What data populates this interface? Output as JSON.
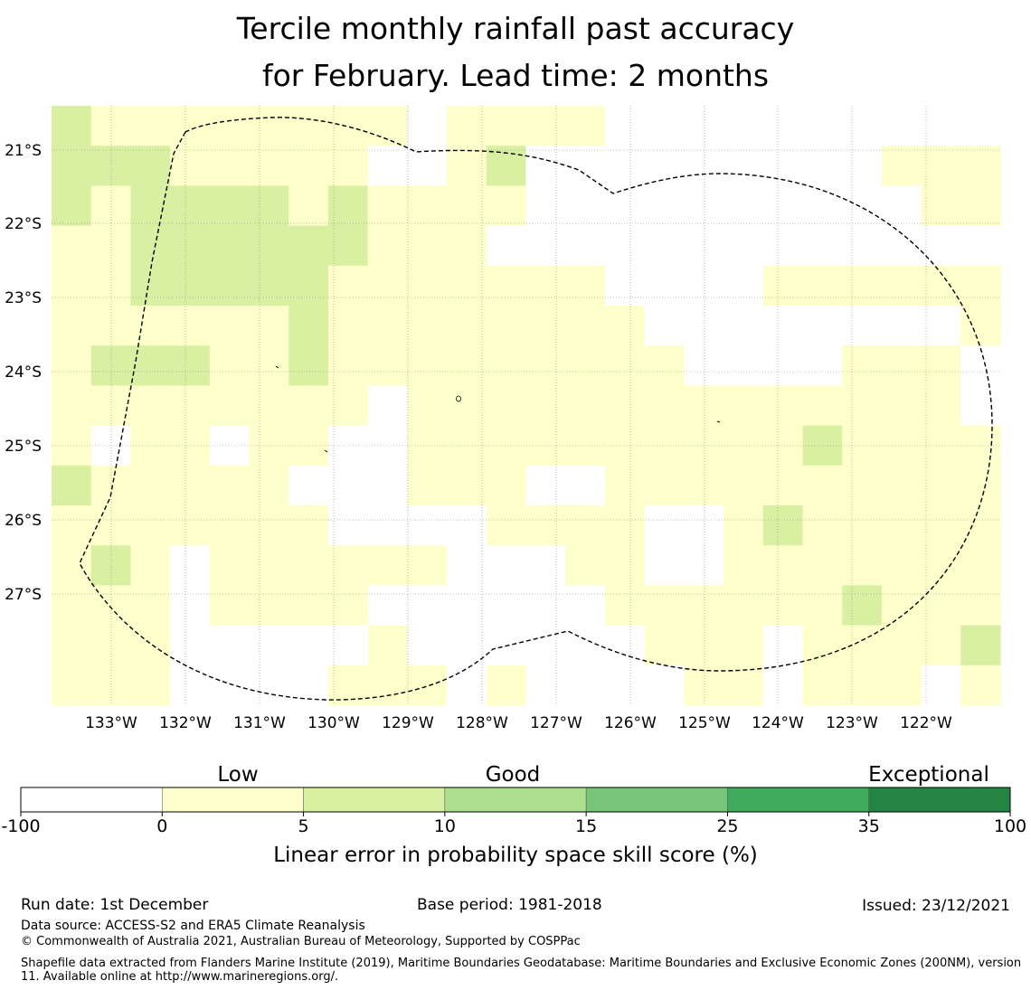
{
  "title": {
    "line1": "Tercile monthly rainfall past accuracy",
    "line2": "for February. Lead time: 2 months"
  },
  "map": {
    "lon_labels": [
      "133°W",
      "132°W",
      "131°W",
      "130°W",
      "129°W",
      "128°W",
      "127°W",
      "126°W",
      "125°W",
      "124°W",
      "123°W",
      "122°W"
    ],
    "lat_labels": [
      "21°S",
      "22°S",
      "23°S",
      "24°S",
      "25°S",
      "26°S",
      "27°S"
    ],
    "cell_values": [
      [
        1,
        0,
        0,
        0,
        0,
        0,
        0,
        0,
        0,
        -1,
        0,
        0,
        0,
        0,
        -1,
        -1,
        -1,
        -1,
        -1,
        -1,
        -1,
        -1,
        -1,
        -1
      ],
      [
        1,
        1,
        1,
        0,
        0,
        0,
        0,
        0,
        -1,
        -1,
        0,
        1,
        -1,
        -1,
        -1,
        -1,
        -1,
        -1,
        -1,
        -1,
        -1,
        0,
        0,
        0
      ],
      [
        1,
        0,
        1,
        1,
        1,
        1,
        0,
        1,
        0,
        0,
        0,
        0,
        -1,
        -1,
        -1,
        -1,
        -1,
        -1,
        -1,
        -1,
        -1,
        -1,
        0,
        0
      ],
      [
        0,
        0,
        1,
        1,
        1,
        1,
        1,
        1,
        0,
        0,
        0,
        -1,
        -1,
        -1,
        -1,
        -1,
        -1,
        -1,
        -1,
        -1,
        -1,
        -1,
        -1,
        -1
      ],
      [
        0,
        0,
        1,
        1,
        1,
        1,
        1,
        0,
        0,
        0,
        0,
        0,
        0,
        0,
        -1,
        -1,
        -1,
        -1,
        0,
        0,
        0,
        0,
        0,
        0
      ],
      [
        0,
        0,
        0,
        0,
        0,
        0,
        1,
        0,
        0,
        0,
        0,
        0,
        0,
        0,
        0,
        -1,
        -1,
        -1,
        -1,
        -1,
        -1,
        -1,
        -1,
        0
      ],
      [
        0,
        1,
        1,
        1,
        0,
        0,
        1,
        0,
        0,
        0,
        0,
        0,
        0,
        0,
        0,
        0,
        -1,
        -1,
        -1,
        -1,
        0,
        0,
        0,
        -1
      ],
      [
        0,
        0,
        0,
        0,
        0,
        0,
        0,
        0,
        -1,
        0,
        0,
        0,
        0,
        0,
        0,
        0,
        0,
        0,
        0,
        0,
        0,
        0,
        0,
        -1
      ],
      [
        0,
        -1,
        0,
        0,
        -1,
        0,
        0,
        -1,
        -1,
        0,
        0,
        0,
        0,
        0,
        0,
        0,
        0,
        0,
        0,
        1,
        0,
        0,
        0,
        0
      ],
      [
        1,
        0,
        0,
        0,
        0,
        0,
        -1,
        -1,
        -1,
        0,
        0,
        0,
        -1,
        -1,
        0,
        0,
        0,
        0,
        0,
        0,
        0,
        0,
        0,
        0
      ],
      [
        0,
        0,
        0,
        0,
        0,
        0,
        0,
        -1,
        -1,
        -1,
        -1,
        0,
        0,
        0,
        0,
        -1,
        -1,
        0,
        1,
        0,
        0,
        0,
        0,
        0
      ],
      [
        0,
        1,
        0,
        -1,
        0,
        0,
        0,
        0,
        0,
        0,
        -1,
        -1,
        -1,
        0,
        0,
        -1,
        -1,
        0,
        0,
        0,
        0,
        0,
        0,
        0
      ],
      [
        0,
        0,
        0,
        -1,
        0,
        0,
        0,
        0,
        -1,
        -1,
        -1,
        -1,
        -1,
        -1,
        0,
        0,
        0,
        0,
        0,
        0,
        1,
        0,
        0,
        0
      ],
      [
        0,
        0,
        0,
        -1,
        -1,
        -1,
        -1,
        -1,
        0,
        -1,
        -1,
        -1,
        -1,
        -1,
        -1,
        0,
        0,
        0,
        -1,
        0,
        0,
        0,
        0,
        1
      ],
      [
        0,
        0,
        0,
        -1,
        -1,
        -1,
        -1,
        0,
        0,
        0,
        -1,
        0,
        -1,
        -1,
        -1,
        -1,
        0,
        0,
        -1,
        0,
        0,
        0,
        -1,
        0
      ]
    ]
  },
  "colorbar": {
    "heading_left": "Low",
    "heading_mid": "Good",
    "heading_right": "Exceptional",
    "ticks": [
      "-100",
      "0",
      "5",
      "10",
      "15",
      "25",
      "35",
      "100"
    ],
    "colors": [
      "#ffffff",
      "#ffffcc",
      "#d9f0a3",
      "#addd8e",
      "#78c679",
      "#41ab5d",
      "#238443"
    ],
    "label": "Linear error in probability space skill score (%)"
  },
  "footer": {
    "run_date": "Run date: 1st December",
    "base_period": "Base period: 1981-2018",
    "issued": "Issued: 23/12/2021",
    "data_source": "Data source: ACCESS-S2 and ERA5 Climate Reanalysis",
    "copyright": "© Commonwealth of Australia 2021, Australian Bureau of Meteorology, Supported by COSPPac",
    "shapefile": "Shapefile data extracted from Flanders Marine Institute (2019), Maritime Boundaries Geodatabase: Maritime Boundaries and Exclusive Economic Zones (200NM), version 11. Available online at http://www.marineregions.org/."
  }
}
